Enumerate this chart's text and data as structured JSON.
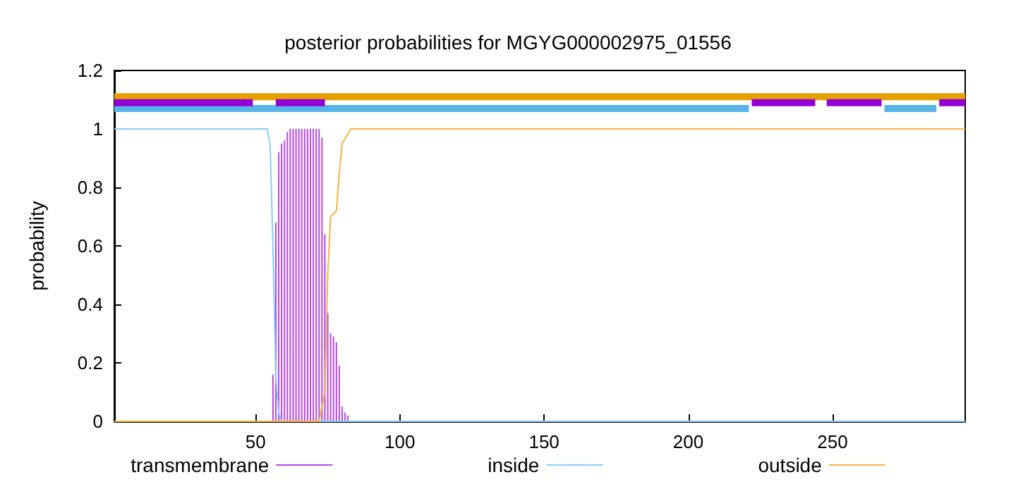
{
  "chart_data": {
    "type": "line",
    "title": "posterior probabilities for MGYG000002975_01556",
    "ylabel": "probability",
    "xlim": [
      1,
      296
    ],
    "xticks": [
      50,
      100,
      150,
      200,
      250
    ],
    "ylim": [
      0,
      1.2
    ],
    "yticks": [
      0,
      0.2,
      0.4,
      0.6,
      0.8,
      1,
      1.2
    ],
    "grid": false,
    "legend": "bottom",
    "series": [
      {
        "name": "transmembrane",
        "type": "bar",
        "color": "#b448e6",
        "x": [
          56,
          57,
          58,
          59,
          60,
          61,
          62,
          63,
          64,
          65,
          66,
          67,
          68,
          69,
          70,
          71,
          72,
          73,
          74,
          75,
          76,
          77,
          78,
          79,
          80,
          81,
          82
        ],
        "values": [
          0.16,
          0.68,
          0.92,
          0.95,
          0.96,
          0.99,
          1,
          1,
          1,
          1,
          1,
          1,
          1,
          1,
          1,
          1,
          1,
          0.97,
          0.64,
          0.37,
          0.3,
          0.29,
          0.27,
          0.19,
          0.05,
          0.03,
          0.02
        ]
      },
      {
        "name": "inside",
        "color": "#87cefa",
        "x": [
          1,
          54,
          55,
          56,
          57,
          58,
          59,
          296
        ],
        "values": [
          1,
          1,
          0.95,
          0.6,
          0.15,
          0.03,
          0,
          0
        ]
      },
      {
        "name": "outside",
        "color": "#f5b540",
        "x": [
          1,
          72,
          74,
          75,
          76,
          78,
          79,
          80,
          83,
          296
        ],
        "values": [
          0,
          0,
          0.1,
          0.5,
          0.7,
          0.72,
          0.85,
          0.95,
          1,
          1
        ]
      },
      {
        "color": "#e69f00",
        "x": [
          1,
          296
        ],
        "values": [
          1.11,
          1.11
        ]
      },
      {
        "color": "#56b4e9",
        "x": [
          1,
          221
        ],
        "values": [
          1.07,
          1.07
        ]
      },
      {
        "color": "#56b4e9",
        "x": [
          268,
          286
        ],
        "values": [
          1.07,
          1.07
        ]
      },
      {
        "color": "#9400d3",
        "x": [
          1,
          49
        ],
        "values": [
          1.09,
          1.09
        ]
      },
      {
        "color": "#9400d3",
        "x": [
          57,
          74
        ],
        "values": [
          1.09,
          1.09
        ]
      },
      {
        "color": "#9400d3",
        "x": [
          222,
          244
        ],
        "values": [
          1.09,
          1.09
        ]
      },
      {
        "color": "#9400d3",
        "x": [
          248,
          267
        ],
        "values": [
          1.09,
          1.09
        ]
      },
      {
        "color": "#9400d3",
        "x": [
          287,
          296
        ],
        "values": [
          1.09,
          1.09
        ]
      }
    ]
  }
}
